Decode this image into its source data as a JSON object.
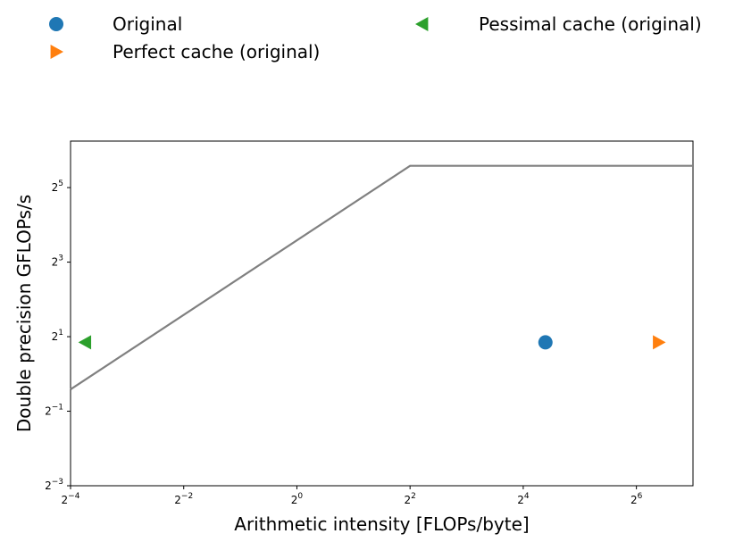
{
  "chart_data": {
    "type": "scatter",
    "title": "",
    "xlabel": "Arithmetic intensity [FLOPs/byte]",
    "ylabel": "Double precision GFLOPs/s",
    "xscale": "log2",
    "yscale": "log2",
    "xlim": [
      0.0625,
      128
    ],
    "ylim": [
      0.125,
      76
    ],
    "xticks": [
      {
        "base": "2",
        "exp": "−4",
        "value": 0.0625
      },
      {
        "base": "2",
        "exp": "−2",
        "value": 0.25
      },
      {
        "base": "2",
        "exp": "0",
        "value": 1
      },
      {
        "base": "2",
        "exp": "2",
        "value": 4
      },
      {
        "base": "2",
        "exp": "4",
        "value": 16
      },
      {
        "base": "2",
        "exp": "6",
        "value": 64
      }
    ],
    "yticks": [
      {
        "base": "2",
        "exp": "−3",
        "value": 0.125
      },
      {
        "base": "2",
        "exp": "−1",
        "value": 0.5
      },
      {
        "base": "2",
        "exp": "1",
        "value": 2
      },
      {
        "base": "2",
        "exp": "3",
        "value": 8
      },
      {
        "base": "2",
        "exp": "5",
        "value": 32
      }
    ],
    "roofline": {
      "color": "#808080",
      "points": [
        [
          0.0625,
          0.75
        ],
        [
          4,
          48
        ],
        [
          128,
          48
        ]
      ]
    },
    "series": [
      {
        "name": "Original",
        "marker": "circle",
        "color": "#1f77b4",
        "points": [
          [
            21,
            1.8
          ]
        ]
      },
      {
        "name": "Perfect cache (original)",
        "marker": "triangle-right",
        "color": "#ff7f0e",
        "points": [
          [
            84,
            1.8
          ]
        ]
      },
      {
        "name": "Pessimal cache (original)",
        "marker": "triangle-left",
        "color": "#2ca02c",
        "points": [
          [
            0.075,
            1.8
          ]
        ]
      }
    ],
    "legend": {
      "placement": "top",
      "columns": 2
    },
    "grid": false
  }
}
